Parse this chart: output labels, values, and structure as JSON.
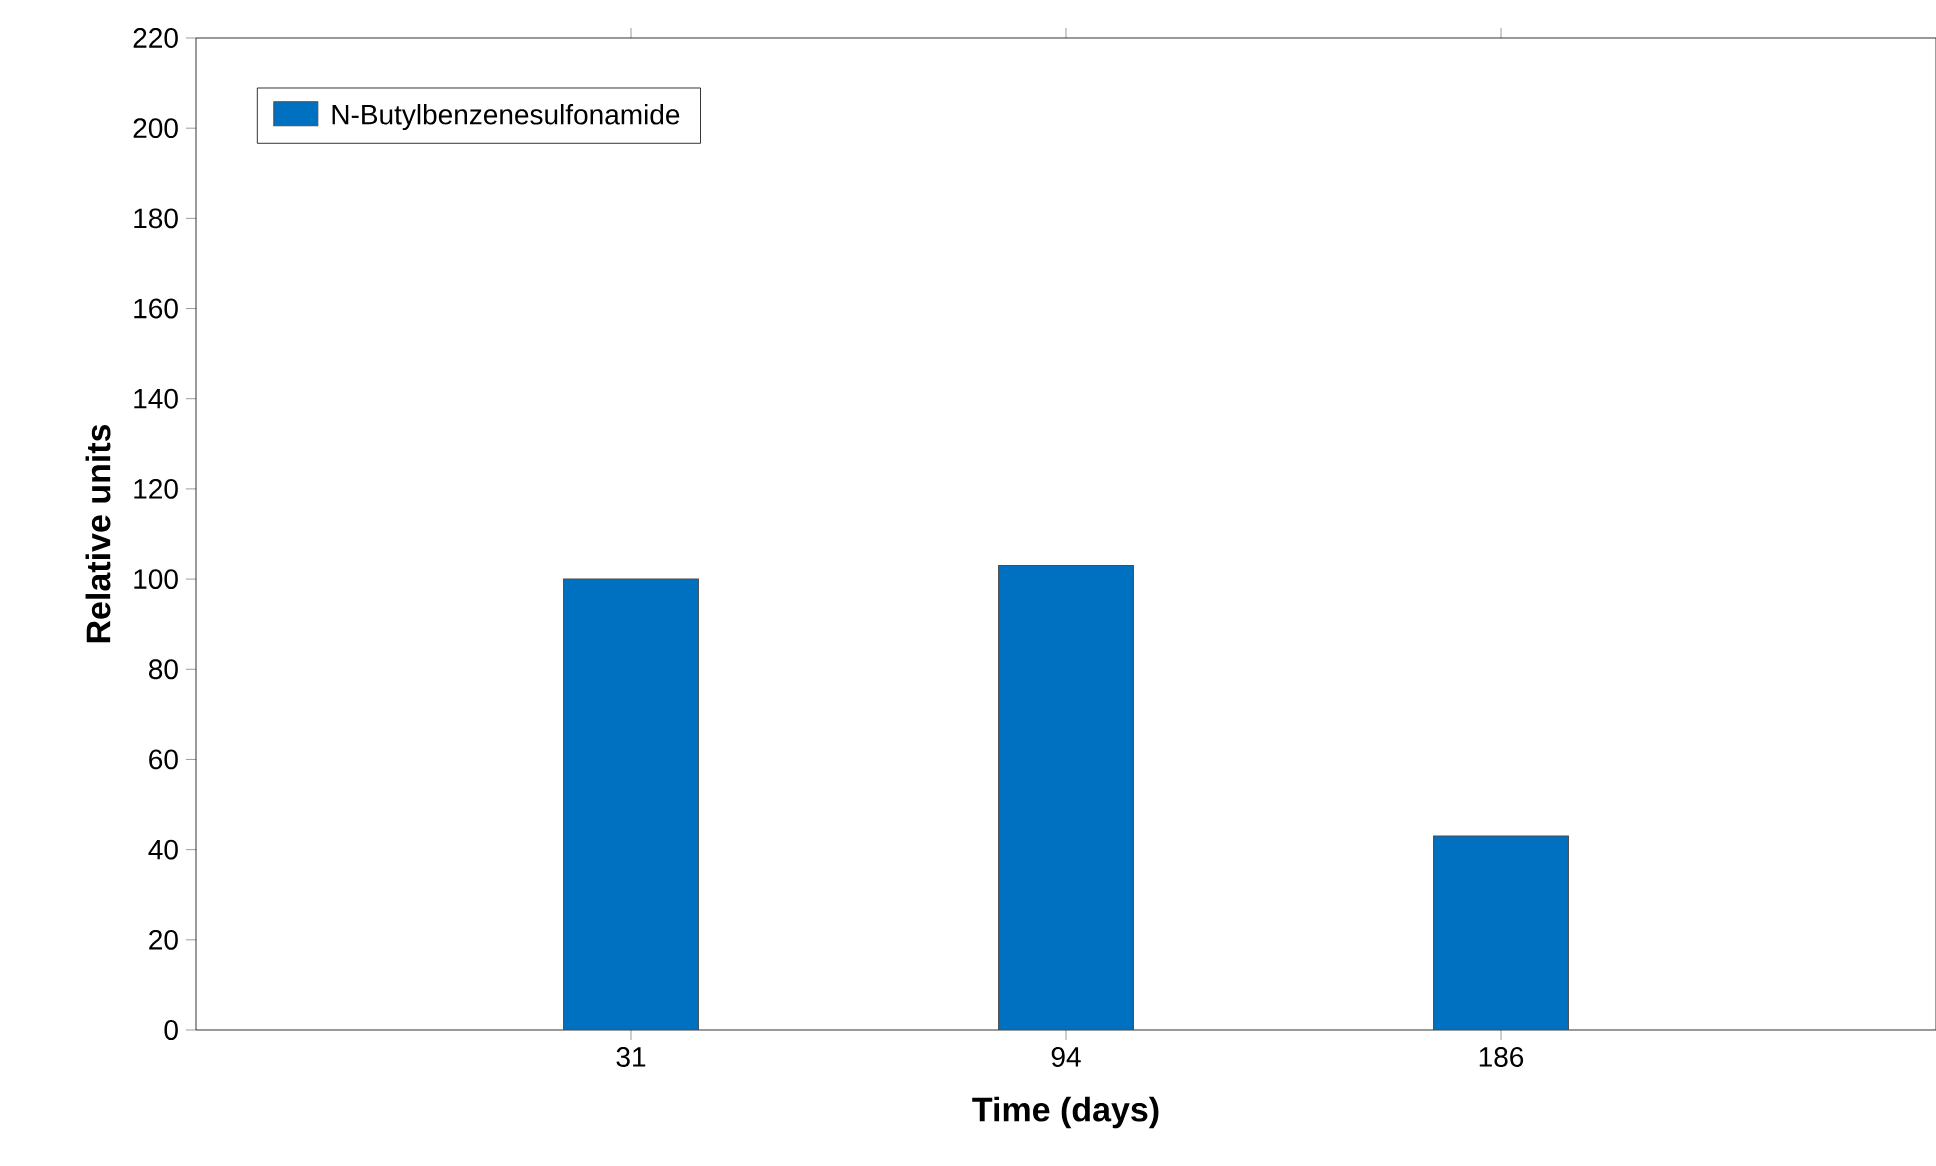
{
  "chart_data": {
    "type": "bar",
    "xlabel": "Time (days)",
    "ylabel": "Relative units",
    "categories": [
      "31",
      "94",
      "186"
    ],
    "series": [
      {
        "name": "N-Butylbenzenesulfonamide",
        "color": "#0070c0",
        "values": [
          100,
          103,
          43
        ]
      }
    ],
    "ylim": [
      0,
      220
    ],
    "yticks": [
      0,
      20,
      40,
      60,
      80,
      100,
      120,
      140,
      160,
      180,
      200,
      220
    ],
    "legend": "top left",
    "grid": false
  }
}
